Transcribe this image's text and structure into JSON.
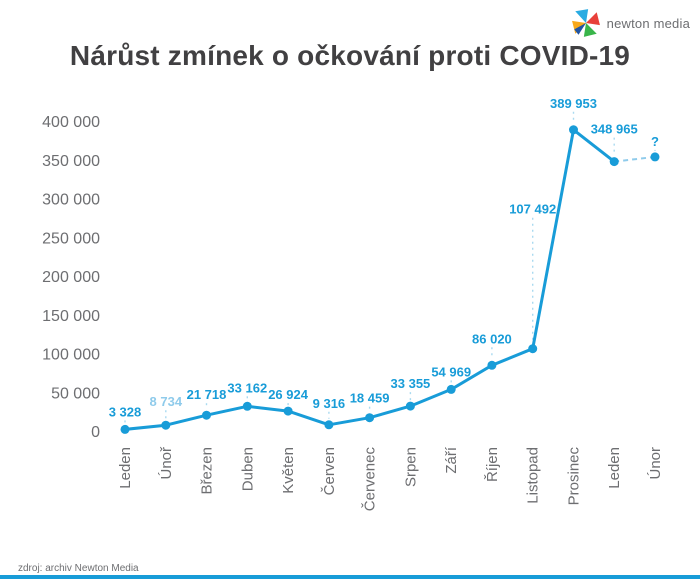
{
  "header": {
    "title": "Nárůst zmínek o očkování proti COVID-19",
    "logo_text": "newton media"
  },
  "footer": {
    "source": "zdroj: archiv Newton Media"
  },
  "chart_data": {
    "type": "line",
    "title": "Nárůst zmínek o očkování proti COVID-19",
    "categories": [
      "Leden",
      "Únoř",
      "Březen",
      "Duben",
      "Květen",
      "Červen",
      "Červenec",
      "Srpen",
      "Září",
      "Říjen",
      "Listopad",
      "Prosinec",
      "Leden",
      "Únor"
    ],
    "values": [
      3328,
      8734,
      21718,
      33162,
      26924,
      9316,
      18459,
      33355,
      54969,
      86020,
      107492,
      389953,
      348965,
      null
    ],
    "value_labels": [
      "3 328",
      "8 734",
      "21 718",
      "33 162",
      "26 924",
      "9 316",
      "18 459",
      "33 355",
      "54 969",
      "86 020",
      "107 492",
      "389 953",
      "348 965",
      "?"
    ],
    "unknown_value_plot_height": 355000,
    "xlabel": "",
    "ylabel": "",
    "ylim": [
      0,
      400000
    ],
    "ytick_step": 50000,
    "ytick_labels": [
      "0",
      "50 000",
      "100 000",
      "150 000",
      "200 000",
      "250 000",
      "300 000",
      "350 000",
      "400 000"
    ],
    "grid": false,
    "legend": false,
    "muted_label_index": 1,
    "dashed_from_index": 12,
    "colors": {
      "line": "#189CD8",
      "muted": "#8FCBEB",
      "leader": "#AADAF0",
      "axis_text": "#6D6E71",
      "title_text": "#414042",
      "logo_sails": [
        "#29ABE2",
        "#E8403A",
        "#39B54A",
        "#F7A81B",
        "#2155A3"
      ]
    }
  }
}
